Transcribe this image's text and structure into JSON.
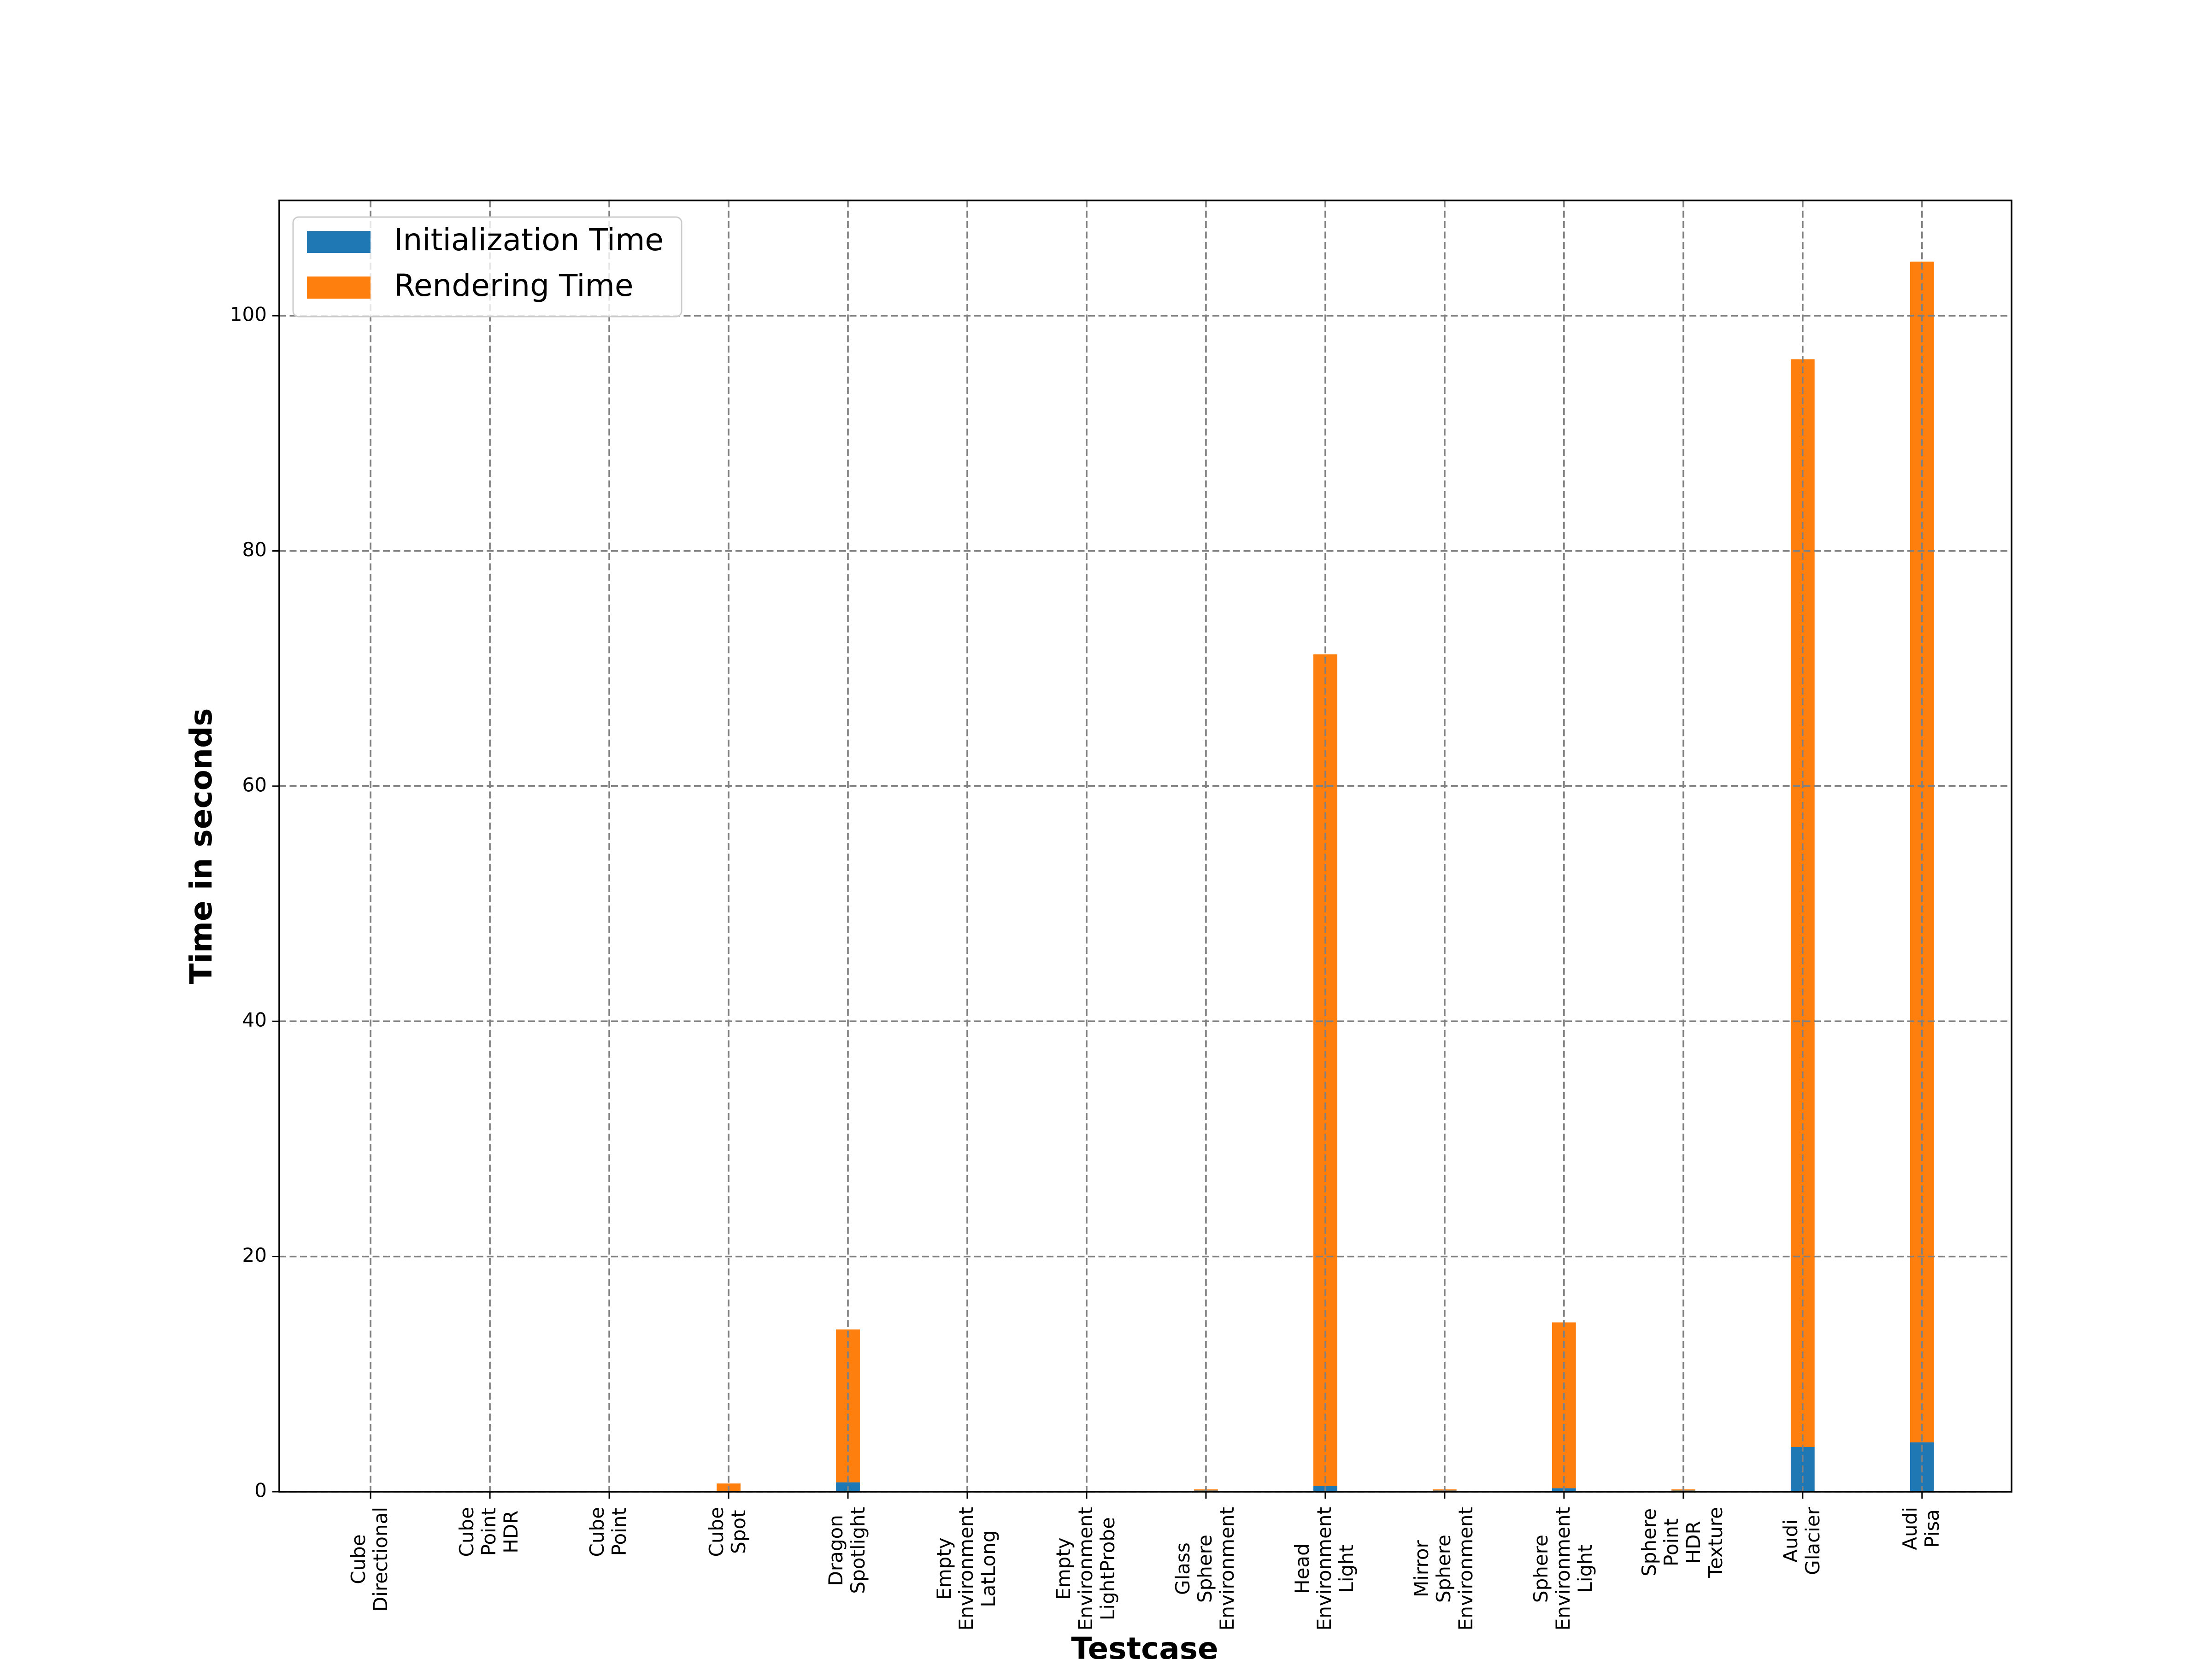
{
  "chart_data": {
    "type": "stacked-bar",
    "xlabel": "Testcase",
    "ylabel": "Time in seconds",
    "categories": [
      "Cube\nDirectional",
      "Cube\nPoint\nHDR",
      "Cube\nPoint",
      "Cube\nSpot",
      "Dragon\nSpotlight",
      "Empty\nEnvironment\nLatLong",
      "Empty\nEnvironment\nLightProbe",
      "Glass\nSphere\nEnvironment",
      "Head\nEnvironment\nLight",
      "Mirror\nSphere\nEnvironment",
      "Sphere\nEnvironment\nLight",
      "Sphere\nPoint\nHDR\nTexture",
      "Audi\nGlacier",
      "Audi\nPisa"
    ],
    "series": [
      {
        "name": "Initialization Time",
        "color": "#1f77b4",
        "values": [
          0,
          0,
          0,
          0,
          0.8,
          0,
          0,
          0.1,
          0.5,
          0.1,
          0.3,
          0.1,
          3.8,
          4.2
        ]
      },
      {
        "name": "Rendering Time",
        "color": "#ff7f0e",
        "values": [
          0,
          0,
          0,
          0.7,
          13.0,
          0,
          0,
          0.1,
          70.7,
          0.1,
          14.1,
          0.1,
          92.5,
          100.4
        ]
      }
    ],
    "ylim": [
      0,
      109.8
    ],
    "yticks": [
      0,
      20,
      40,
      60,
      80,
      100
    ],
    "grid": true,
    "legend": "upper left"
  }
}
